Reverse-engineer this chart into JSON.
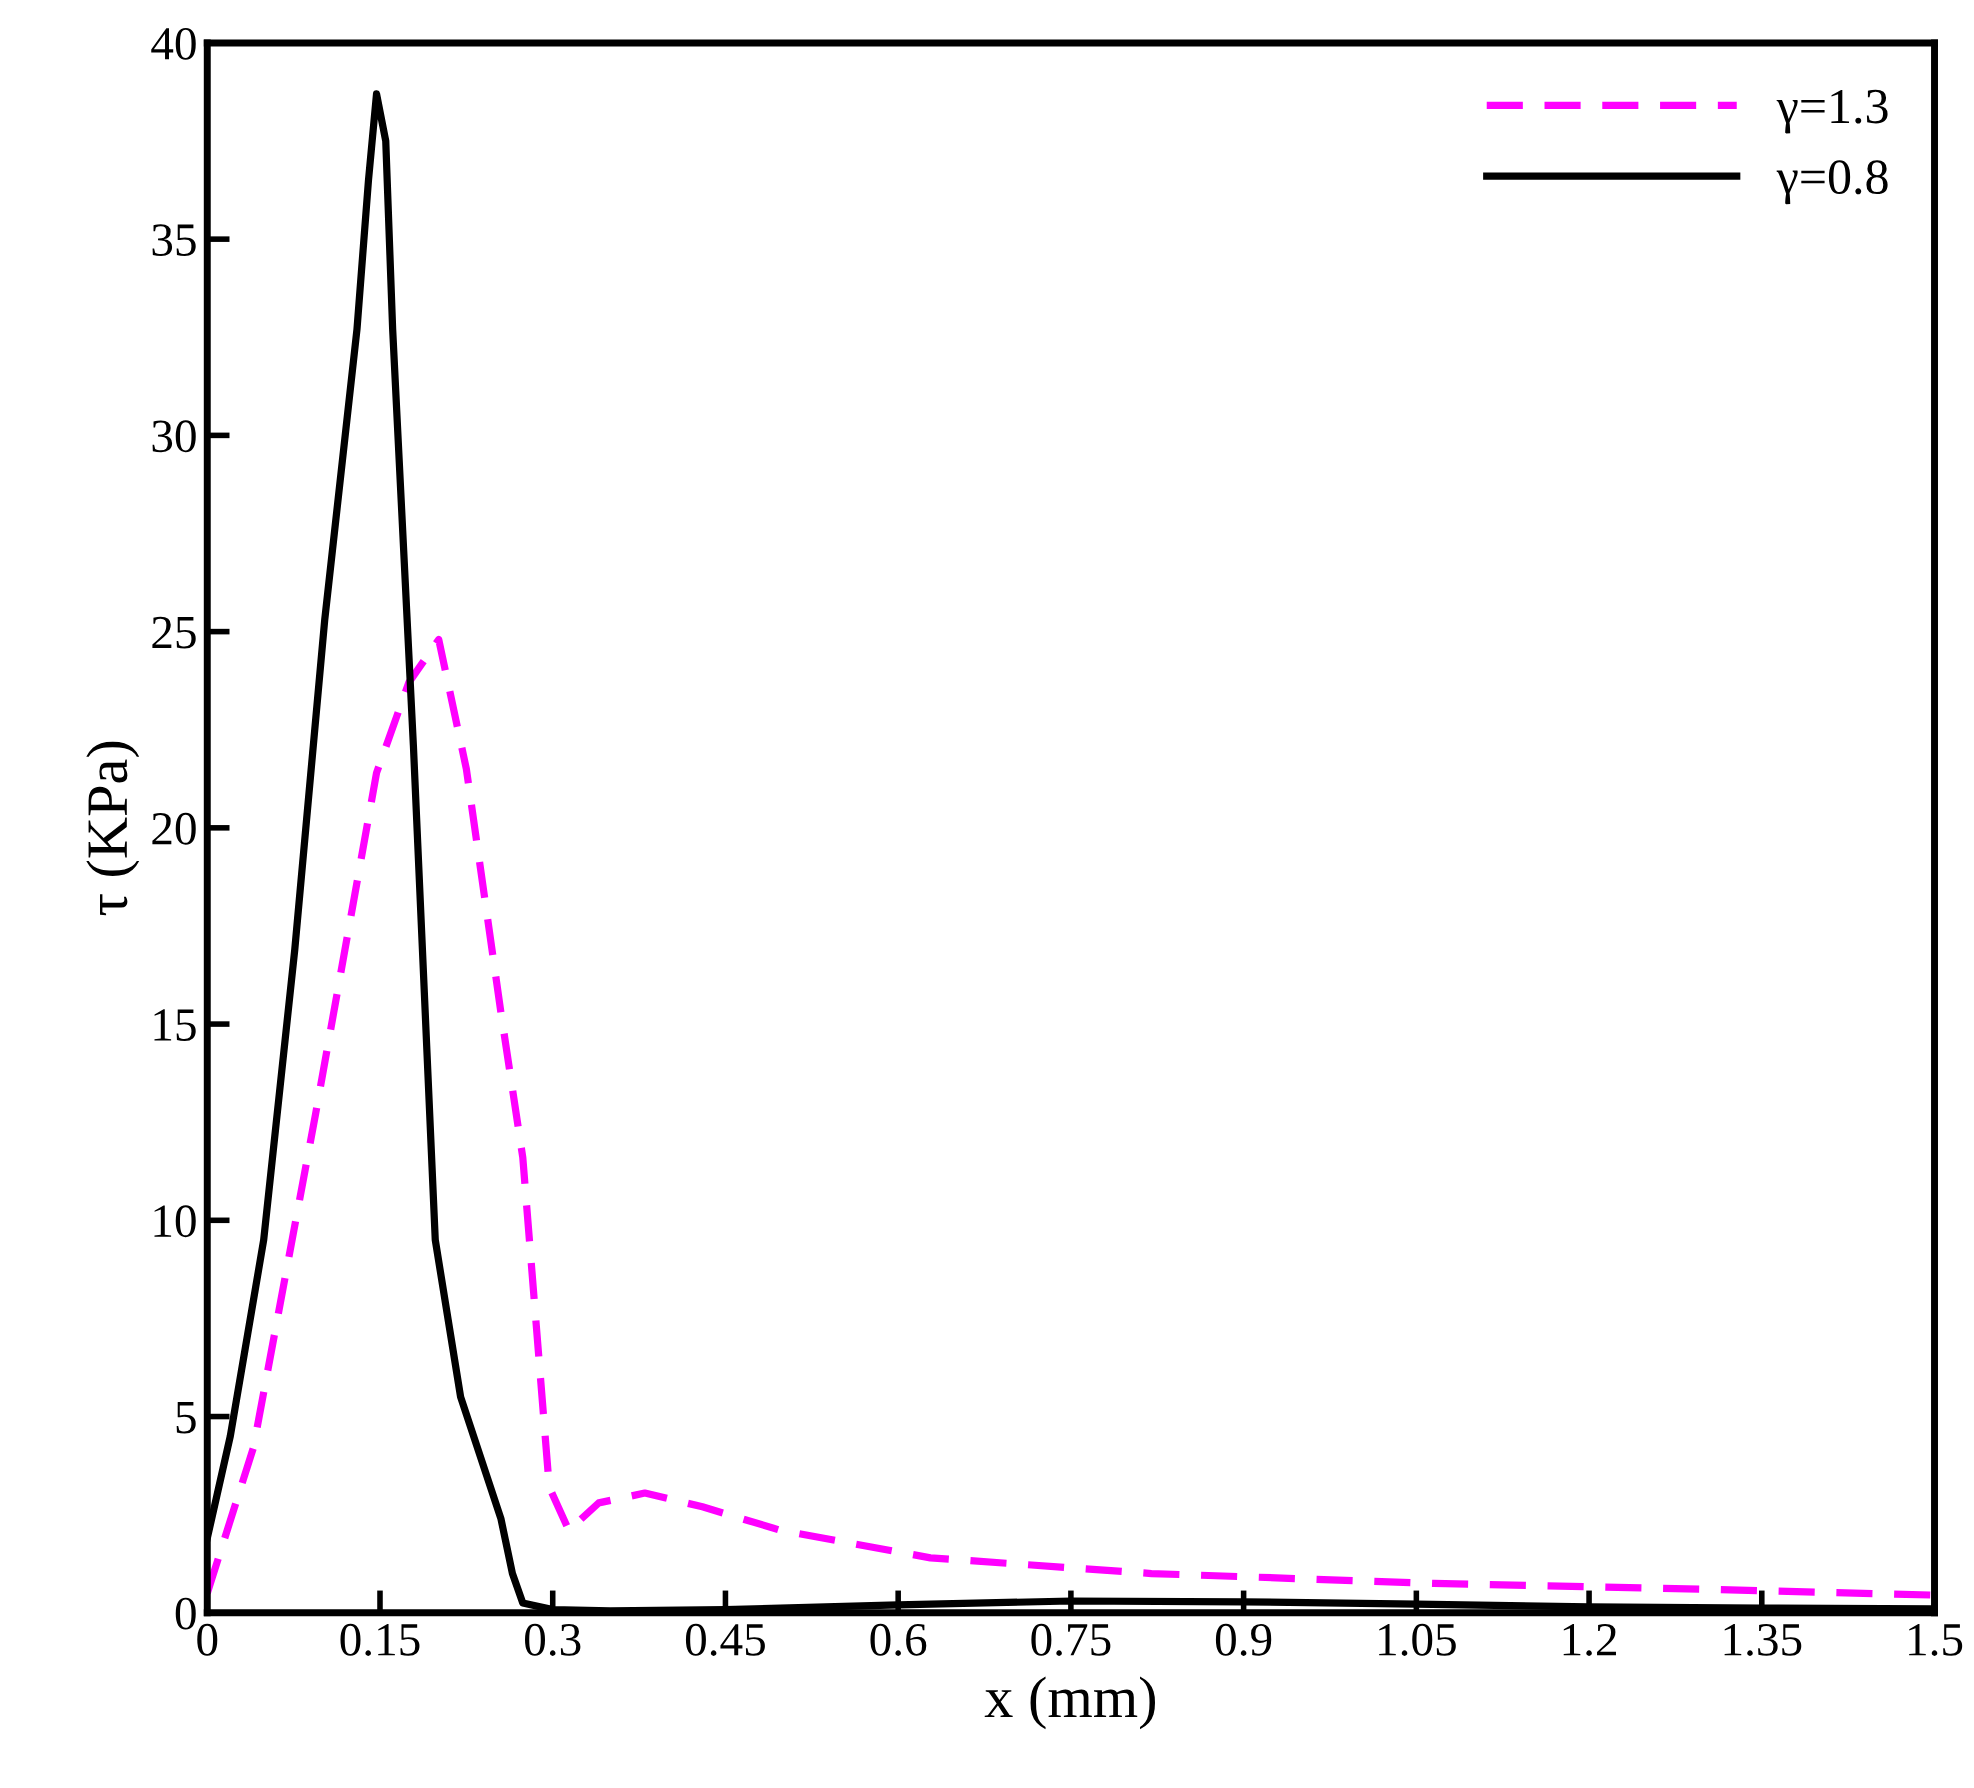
{
  "chart_data": {
    "type": "line",
    "xlabel": "x (mm)",
    "ylabel": "τ (KPa)",
    "xlim": [
      0,
      1.5
    ],
    "ylim": [
      0,
      40
    ],
    "xticks": [
      0,
      0.15,
      0.3,
      0.45,
      0.6,
      0.75,
      0.9,
      1.05,
      1.2,
      1.35,
      1.5
    ],
    "yticks": [
      0,
      5,
      10,
      15,
      20,
      25,
      30,
      35,
      40
    ],
    "grid": false,
    "legend": "top right",
    "series": [
      {
        "name": "γ=1.3",
        "color": "#ff00ff",
        "line_style": "dashed",
        "x": [
          0,
          0.04,
          0.094,
          0.147,
          0.175,
          0.201,
          0.225,
          0.255,
          0.274,
          0.297,
          0.314,
          0.34,
          0.38,
          0.43,
          0.498,
          0.628,
          0.82,
          1.065,
          1.3,
          1.5
        ],
        "values": [
          0.5,
          4.2,
          12.7,
          21.4,
          23.7,
          24.8,
          21.5,
          15.3,
          11.6,
          3.2,
          2.1,
          2.8,
          3.05,
          2.7,
          2.1,
          1.4,
          1.0,
          0.75,
          0.6,
          0.45
        ]
      },
      {
        "name": "γ=0.8",
        "color": "#000000",
        "line_style": "solid",
        "x": [
          0,
          0.02,
          0.049,
          0.076,
          0.102,
          0.13,
          0.14,
          0.147,
          0.155,
          0.161,
          0.179,
          0.198,
          0.22,
          0.255,
          0.265,
          0.274,
          0.3,
          0.35,
          0.45,
          0.6,
          0.75,
          0.9,
          1.05,
          1.2,
          1.35,
          1.5
        ],
        "values": [
          1.9,
          4.5,
          9.5,
          16.9,
          25.3,
          32.7,
          36.5,
          38.7,
          37.5,
          32.7,
          22.1,
          9.5,
          5.5,
          2.4,
          1.0,
          0.25,
          0.08,
          0.05,
          0.08,
          0.2,
          0.3,
          0.28,
          0.22,
          0.15,
          0.12,
          0.1
        ]
      }
    ]
  }
}
